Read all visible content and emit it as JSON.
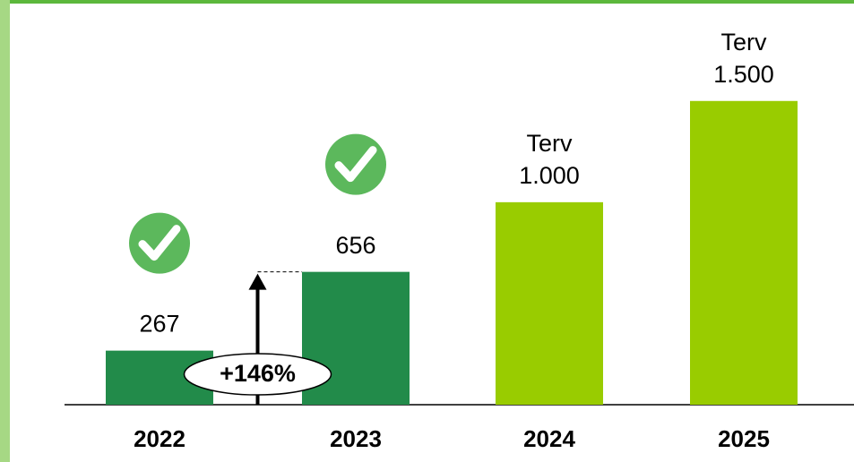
{
  "chart_data": {
    "type": "bar",
    "categories": [
      "2022",
      "2023",
      "2024",
      "2025"
    ],
    "values": [
      267,
      656,
      1000,
      1500
    ],
    "value_labels": [
      "267",
      "656",
      "1.000",
      "1.500"
    ],
    "plan_labels": [
      null,
      null,
      "Terv",
      "Terv"
    ],
    "colors": [
      "#228b4a",
      "#228b4a",
      "#99cc00",
      "#99cc00"
    ],
    "achieved": [
      true,
      true,
      false,
      false
    ],
    "growth_label": "+146%",
    "ylim": [
      0,
      2000
    ]
  }
}
